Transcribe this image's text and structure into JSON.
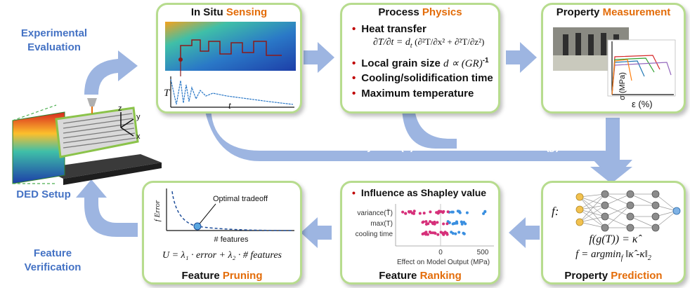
{
  "side_labels": {
    "experimental_line1": "Experimental",
    "experimental_line2": "Evaluation",
    "ded_setup": "DED Setup",
    "feature_line1": "Feature",
    "feature_line2": "Verification"
  },
  "axes_triad": {
    "z": "z",
    "y": "y",
    "x": "x"
  },
  "flow_labels": {
    "thermal_prefix": "Thermal history data (",
    "thermal_var": "T",
    "thermal_suffix": ")",
    "feature_prefix": "Feature extractor (",
    "feature_var": "g",
    "feature_suffix": ")"
  },
  "panels": {
    "in_situ": {
      "title_plain": "In Situ ",
      "title_highlight": "Sensing",
      "axis_y": "T",
      "axis_x": "t"
    },
    "physics": {
      "title_plain": "Process ",
      "title_highlight": "Physics",
      "bullets": [
        "Heat transfer",
        "Local grain size",
        "Cooling/solidification time",
        "Maximum temperature"
      ],
      "grain_formula": "d ∝ (GR)",
      "grain_exp": "-1",
      "eq_lhs": "∂T/∂t = d",
      "eq_sub": "t"
    },
    "property_measurement": {
      "title_plain": "Property ",
      "title_highlight": "Measurement",
      "ylabel": "σ (MPa)",
      "xlabel": "ε (%)"
    },
    "property_prediction": {
      "title_plain": "Property ",
      "title_highlight": "Prediction",
      "f_label": "f:",
      "eq1": "f(g(T)) = κ̂",
      "eq2_prefix": "f = argmin",
      "eq2_sub": "f",
      "eq2_suffix": " ‖κ̂ -κ‖",
      "eq2_sub2": "2"
    },
    "ranking": {
      "title_plain": "Feature ",
      "title_highlight": "Ranking",
      "subtitle": "Influence as Shapley value",
      "rows": [
        "variance(T̃)",
        "max(T)",
        "cooling time"
      ],
      "xlabel": "Effect on Model Output (MPa)",
      "ticks": [
        "0",
        "500"
      ]
    },
    "pruning": {
      "title_plain": "Feature ",
      "title_highlight": "Pruning",
      "annotation": "Optimal tradeoff",
      "ylabel": "f Error",
      "xlabel": "# features",
      "equation": "U = λ₁ · error + λ₂ · # features"
    }
  },
  "colors": {
    "panel_border": "#b7dc8e",
    "highlight": "#e36c09",
    "arrow_blue": "#9db5e1",
    "side_text": "#4472c4",
    "bullet_red": "#c00000"
  }
}
